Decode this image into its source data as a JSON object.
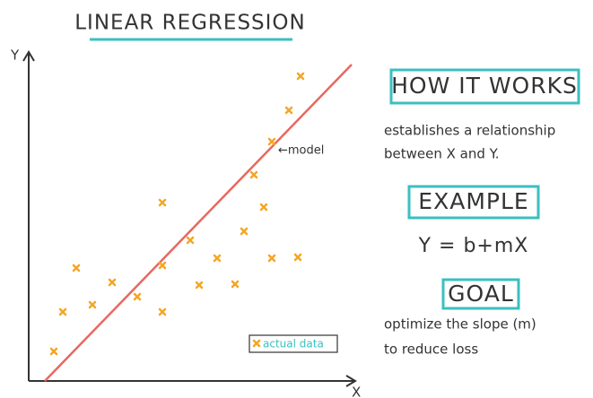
{
  "title": "LINEAR REGRESSION",
  "plot": {
    "y_axis": "Y",
    "x_axis": "X",
    "line_label": "←model",
    "legend": "actual data"
  },
  "how_it_works": {
    "heading": "HOW IT WORKS",
    "lines": [
      "establishes a relationship",
      "between X and Y."
    ]
  },
  "example": {
    "heading": "EXAMPLE",
    "formula": "Y = b+mX"
  },
  "goal": {
    "heading": "GOAL",
    "lines": [
      "optimize the slope (m)",
      "to reduce loss"
    ]
  }
}
